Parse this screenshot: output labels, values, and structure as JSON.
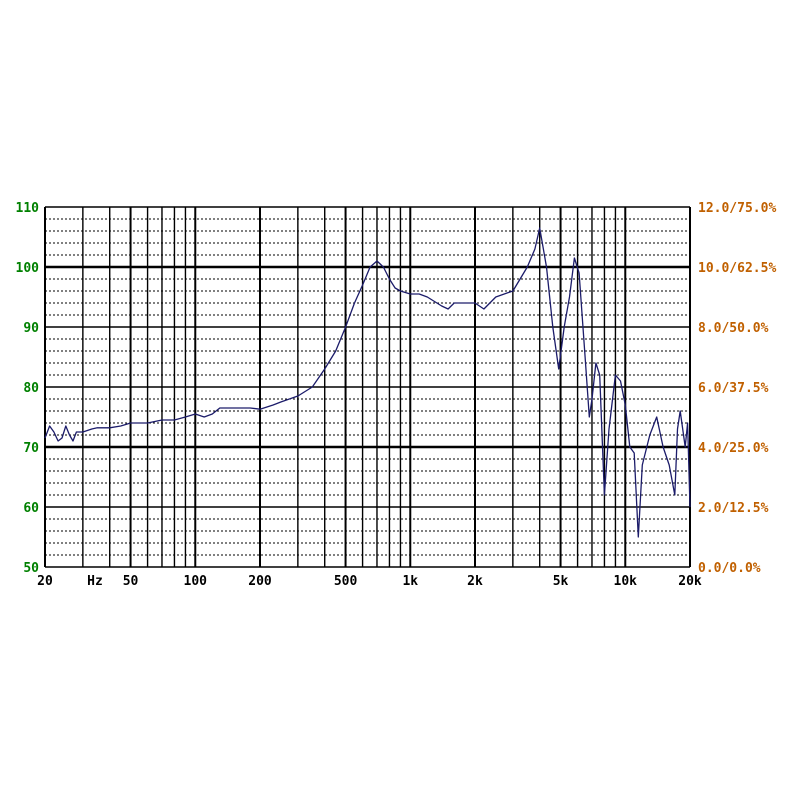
{
  "chart_data": {
    "type": "line",
    "title": "",
    "xlabel": "Hz",
    "ylabel": "",
    "x_scale": "log",
    "xlim": [
      20,
      20000
    ],
    "ylim": [
      50,
      110
    ],
    "grid": true,
    "x_tick_labels": [
      {
        "value": 20,
        "label": "20"
      },
      {
        "value": 50,
        "label": "50"
      },
      {
        "value": 100,
        "label": "100"
      },
      {
        "value": 200,
        "label": "200"
      },
      {
        "value": 500,
        "label": "500"
      },
      {
        "value": 1000,
        "label": "1k"
      },
      {
        "value": 2000,
        "label": "2k"
      },
      {
        "value": 5000,
        "label": "5k"
      },
      {
        "value": 10000,
        "label": "10k"
      },
      {
        "value": 20000,
        "label": "20k"
      }
    ],
    "y_ticks": [
      50,
      60,
      70,
      80,
      90,
      100,
      110
    ],
    "y_tick_labels": [
      "50",
      "60",
      "70",
      "80",
      "90",
      "100",
      "110"
    ],
    "y2_tick_labels": [
      "0.0/0.0%",
      "2.0/12.5%",
      "4.0/25.0%",
      "6.0/37.5%",
      "8.0/50.0%",
      "10.0/62.5%",
      "12.0/75.0%"
    ],
    "colors": {
      "left_axis": "#008000",
      "right_axis": "#c06000",
      "curve": "#1c1c6a",
      "grid": "#000000"
    },
    "series": [
      {
        "x": [
          20,
          21,
          22,
          23,
          24,
          25,
          26,
          27,
          28,
          30,
          33,
          35,
          40,
          45,
          50,
          55,
          60,
          70,
          80,
          90,
          100,
          110,
          120,
          130,
          150,
          180,
          200,
          230,
          250,
          300,
          350,
          400,
          450,
          500,
          550,
          600,
          650,
          700,
          750,
          800,
          850,
          900,
          1000,
          1100,
          1200,
          1400,
          1500,
          1600,
          1800,
          2000,
          2200,
          2500,
          3000,
          3500,
          3800,
          4000,
          4300,
          4600,
          4900,
          5200,
          5500,
          5800,
          6100,
          6500,
          6800,
          7000,
          7300,
          7600,
          8000,
          8400,
          9000,
          9500,
          10000,
          10500,
          11000,
          11500,
          12000,
          13000,
          14000,
          15000,
          16000,
          17000,
          17500,
          18000,
          19000,
          19500,
          20000
        ],
        "y": [
          71.5,
          73.5,
          72.5,
          71,
          71.5,
          73.5,
          72,
          71,
          72.5,
          72.5,
          73,
          73.2,
          73.2,
          73.5,
          74,
          74,
          74,
          74.5,
          74.5,
          75,
          75.5,
          75,
          75.5,
          76.5,
          76.5,
          76.5,
          76.3,
          77,
          77.5,
          78.5,
          80,
          83,
          86,
          90,
          94,
          97,
          100,
          101,
          100,
          98,
          96.5,
          96,
          95.5,
          95.5,
          95,
          93.5,
          93,
          94,
          94,
          94,
          93,
          95,
          96,
          100,
          103,
          106.5,
          100,
          90,
          83,
          90,
          95,
          101.5,
          99,
          85,
          75,
          78,
          84,
          82,
          62,
          73,
          82,
          81,
          77,
          70,
          69,
          55,
          67,
          72,
          75,
          70,
          67,
          62,
          73,
          76,
          70,
          74,
          60
        ]
      }
    ]
  }
}
